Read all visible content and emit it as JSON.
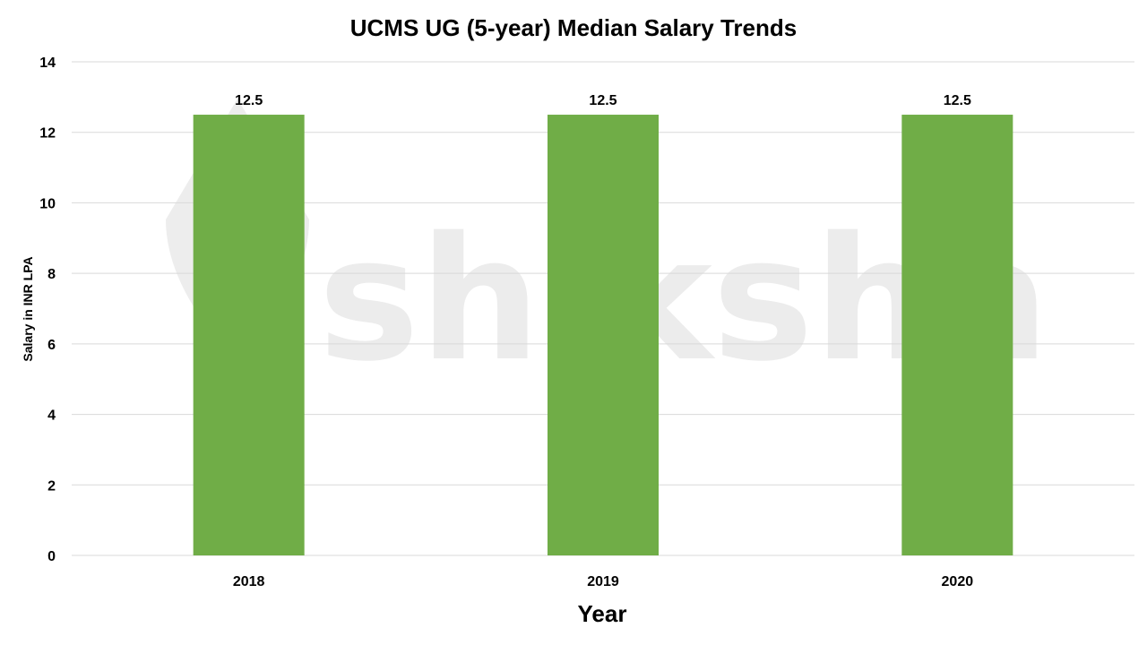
{
  "chart_data": {
    "type": "bar",
    "title": "UCMS UG (5-year) Median Salary Trends",
    "xlabel": "Year",
    "ylabel": "Salary in INR LPA",
    "categories": [
      "2018",
      "2019",
      "2020"
    ],
    "values": [
      12.5,
      12.5,
      12.5
    ],
    "data_labels": [
      "12.5",
      "12.5",
      "12.5"
    ],
    "ylim": [
      0,
      14
    ],
    "yticks": [
      0,
      2,
      4,
      6,
      8,
      10,
      12,
      14
    ],
    "grid": true,
    "legend": "none",
    "bar_color": "#70AD47"
  },
  "watermark": {
    "text": "shiksha"
  }
}
